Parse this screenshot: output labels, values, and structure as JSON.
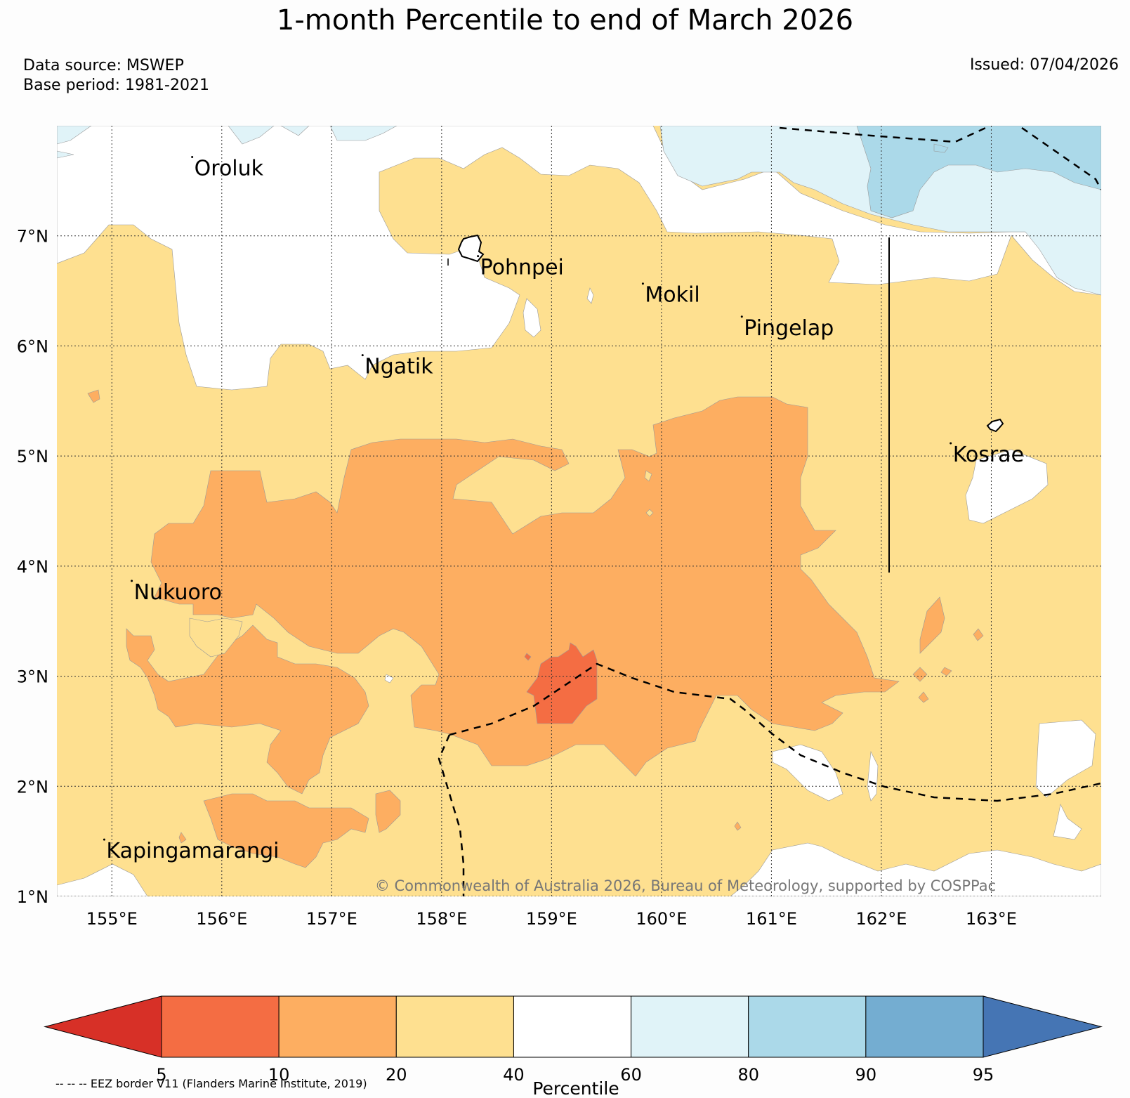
{
  "header": {
    "title": "1-month Percentile to end of March 2026",
    "data_source": "Data source: MSWEP",
    "base_period": "Base period: 1981-2021",
    "issued": "Issued: 07/04/2026"
  },
  "map": {
    "lon_range": [
      154.5,
      164.0
    ],
    "lat_range": [
      1.0,
      8.0
    ],
    "lat_ticks": [
      "7°N",
      "6°N",
      "5°N",
      "4°N",
      "3°N",
      "2°N",
      "1°N"
    ],
    "lon_ticks": [
      "155°E",
      "156°E",
      "157°E",
      "158°E",
      "159°E",
      "160°E",
      "161°E",
      "162°E",
      "163°E"
    ],
    "places": [
      {
        "name": "Oroluk",
        "lon": 155.75,
        "lat": 7.55
      },
      {
        "name": "Pohnpei",
        "lon": 158.35,
        "lat": 6.65
      },
      {
        "name": "Mokil",
        "lon": 159.85,
        "lat": 6.4
      },
      {
        "name": "Pingelap",
        "lon": 160.75,
        "lat": 6.1
      },
      {
        "name": "Ngatik",
        "lon": 157.3,
        "lat": 5.75
      },
      {
        "name": "Kosrae",
        "lon": 162.65,
        "lat": 4.95
      },
      {
        "name": "Nukuoro",
        "lon": 155.2,
        "lat": 3.7
      },
      {
        "name": "Kapingamarangi",
        "lon": 154.95,
        "lat": 1.35
      }
    ],
    "copyright": "© Commonwealth of Australia 2026, Bureau of Meteorology, supported by COSPPac"
  },
  "colorbar": {
    "label": "Percentile",
    "tick_labels": [
      "5",
      "10",
      "20",
      "40",
      "60",
      "80",
      "90",
      "95"
    ],
    "colors": [
      "#d73027",
      "#f46d43",
      "#fdae61",
      "#fee090",
      "#ffffff",
      "#e0f3f8",
      "#abd9e9",
      "#74add1",
      "#4575b4"
    ]
  },
  "footnote": "-- -- -- EEZ border V11 (Flanders Marine Institute, 2019)"
}
